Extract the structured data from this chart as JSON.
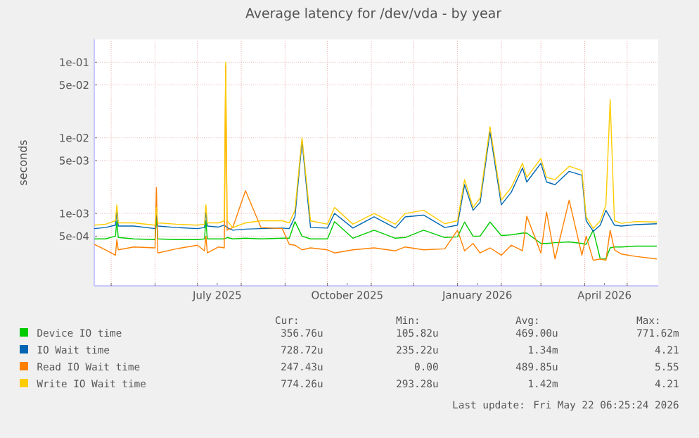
{
  "chart_data": {
    "type": "line",
    "title": "Average latency for /dev/vda - by year",
    "ylabel": "seconds",
    "log": "y",
    "grid": true,
    "legend": "bottom",
    "xlim": [
      "2025-04-19",
      "2026-05-23"
    ],
    "ylim": [
      0.00011,
      0.2
    ],
    "xticks": [
      {
        "value": "2025-07-15",
        "label": "July 2025"
      },
      {
        "value": "2025-10-15",
        "label": "October 2025"
      },
      {
        "value": "2026-01-15",
        "label": "January 2026"
      },
      {
        "value": "2026-04-15",
        "label": "April 2026"
      },
      {
        "value": "2025-05-01",
        "label": null
      },
      {
        "value": "2025-06-01",
        "label": null
      },
      {
        "value": "2025-07-01",
        "label": null
      },
      {
        "value": "2025-08-01",
        "label": null
      },
      {
        "value": "2025-09-01",
        "label": null
      },
      {
        "value": "2025-10-01",
        "label": null
      },
      {
        "value": "2025-11-01",
        "label": null
      },
      {
        "value": "2025-12-01",
        "label": null
      },
      {
        "value": "2026-01-01",
        "label": null
      },
      {
        "value": "2026-02-01",
        "label": null
      },
      {
        "value": "2026-03-01",
        "label": null
      },
      {
        "value": "2026-04-01",
        "label": null
      },
      {
        "value": "2026-05-01",
        "label": null
      }
    ],
    "yticks": [
      {
        "value": 0.0005,
        "label": "5e-04"
      },
      {
        "value": 0.001,
        "label": "1e-03"
      },
      {
        "value": 0.005,
        "label": "5e-03"
      },
      {
        "value": 0.01,
        "label": "1e-02"
      },
      {
        "value": 0.05,
        "label": "5e-02"
      },
      {
        "value": 0.1,
        "label": "1e-01"
      }
    ],
    "x": [
      "2025-04-19",
      "2025-04-27",
      "2025-05-04",
      "2025-05-05",
      "2025-05-06",
      "2025-05-17",
      "2025-06-01",
      "2025-06-02",
      "2025-06-03",
      "2025-06-16",
      "2025-07-01",
      "2025-07-06",
      "2025-07-07",
      "2025-07-08",
      "2025-07-16",
      "2025-07-20",
      "2025-07-21",
      "2025-07-22",
      "2025-07-26",
      "2025-08-04",
      "2025-08-15",
      "2025-08-30",
      "2025-09-04",
      "2025-09-08",
      "2025-09-13",
      "2025-09-19",
      "2025-10-01",
      "2025-10-06",
      "2025-10-19",
      "2025-11-03",
      "2025-11-18",
      "2025-11-25",
      "2025-12-08",
      "2025-12-23",
      "2026-01-01",
      "2026-01-06",
      "2026-01-12",
      "2026-01-17",
      "2026-01-24",
      "2026-02-01",
      "2026-02-08",
      "2026-02-16",
      "2026-02-19",
      "2026-03-01",
      "2026-03-05",
      "2026-03-11",
      "2026-03-21",
      "2026-03-30",
      "2026-04-02",
      "2026-04-07",
      "2026-04-12",
      "2026-04-16",
      "2026-04-19",
      "2026-04-22",
      "2026-04-27",
      "2026-05-07",
      "2026-05-22"
    ],
    "series": [
      {
        "name": "Device IO time",
        "color": "#00cc00",
        "values": [
          0.00046,
          0.00046,
          0.0005,
          0.0008,
          0.00048,
          0.00046,
          0.00045,
          0.0009,
          0.00046,
          0.00045,
          0.00045,
          0.00046,
          0.0008,
          0.00046,
          0.00046,
          0.00046,
          null,
          0.00048,
          0.00046,
          0.00047,
          0.00046,
          0.00047,
          0.00047,
          0.00078,
          0.0005,
          0.00046,
          0.00046,
          0.00078,
          0.00047,
          0.0006,
          0.00047,
          0.00048,
          0.0006,
          0.00048,
          0.00049,
          0.00077,
          0.0005,
          0.0005,
          0.00077,
          0.00051,
          0.00052,
          0.00055,
          0.00055,
          0.0004,
          0.0004,
          0.00041,
          0.00042,
          0.0004,
          0.00039,
          0.0006,
          0.00025,
          0.00025,
          0.00035,
          0.00036,
          0.00036,
          0.00037,
          0.00037
        ]
      },
      {
        "name": "IO Wait time",
        "color": "#0066b3",
        "values": [
          0.00063,
          0.00065,
          0.0007,
          0.0011,
          0.00068,
          0.00068,
          0.00063,
          0.001,
          0.00068,
          0.00065,
          0.00063,
          0.00065,
          0.0011,
          0.00068,
          0.00066,
          0.0007,
          null,
          0.00065,
          0.0006,
          0.00062,
          0.00063,
          0.00064,
          0.00063,
          0.0009,
          0.009,
          0.00065,
          0.00064,
          0.001,
          0.00064,
          0.0009,
          0.00064,
          0.0009,
          0.00095,
          0.00065,
          0.0007,
          0.0024,
          0.0011,
          0.0014,
          0.012,
          0.0013,
          0.0019,
          0.004,
          0.0026,
          0.0046,
          0.0026,
          0.0024,
          0.0036,
          0.0032,
          0.0008,
          0.00058,
          0.0007,
          0.0011,
          null,
          0.0007,
          0.00068,
          0.00071,
          0.00073
        ]
      },
      {
        "name": "Read IO Wait time",
        "color": "#ff8000",
        "values": [
          0.00039,
          0.00033,
          0.00028,
          0.00045,
          0.00033,
          0.00036,
          0.00035,
          0.0022,
          0.0003,
          0.00034,
          0.00038,
          0.00032,
          0.0005,
          0.0003,
          0.00036,
          0.00035,
          0.09,
          0.0006,
          0.00065,
          0.002,
          0.00065,
          0.00063,
          0.00039,
          0.00038,
          0.00033,
          0.00035,
          0.00033,
          0.0003,
          0.00033,
          0.00035,
          0.00032,
          0.00036,
          0.00033,
          0.00034,
          0.0006,
          0.00032,
          0.0004,
          0.0003,
          0.00035,
          0.00028,
          0.00038,
          0.00032,
          0.00092,
          0.0003,
          0.00104,
          0.00025,
          0.0015,
          0.00028,
          0.0005,
          0.00024,
          0.00025,
          0.00024,
          0.0006,
          0.00033,
          0.00029,
          0.00027,
          0.00025
        ]
      },
      {
        "name": "Write IO Wait time",
        "color": "#ffcc00",
        "values": [
          0.0007,
          0.00072,
          0.0008,
          0.0013,
          0.00075,
          0.00075,
          0.0007,
          0.0012,
          0.00075,
          0.00072,
          0.0007,
          0.00072,
          0.0013,
          0.00075,
          0.00075,
          0.0008,
          0.1,
          0.0008,
          0.00065,
          0.00075,
          0.0008,
          0.0008,
          0.00075,
          0.0011,
          0.01,
          0.0008,
          0.00072,
          0.0012,
          0.00072,
          0.001,
          0.00072,
          0.001,
          0.0011,
          0.00073,
          0.0008,
          0.0028,
          0.0012,
          0.0016,
          0.014,
          0.0015,
          0.0022,
          0.0046,
          0.003,
          0.0053,
          0.003,
          0.0028,
          0.0042,
          0.0037,
          0.0009,
          0.00063,
          0.0008,
          0.0013,
          0.032,
          0.0008,
          0.00074,
          0.00078,
          0.00077
        ]
      }
    ],
    "annotations": [
      "Cur:",
      "Min:",
      "Avg:",
      "Max:",
      "356.76u",
      "105.82u",
      "469.00u",
      "771.62m",
      "728.72u",
      "235.22u",
      "1.34m",
      "4.21",
      "247.43u",
      "0.00",
      "489.85u",
      "5.55",
      "774.26u",
      "293.28u",
      "1.42m",
      "4.21",
      "Last update: Fri May 22 06:25:24 2026"
    ]
  }
}
